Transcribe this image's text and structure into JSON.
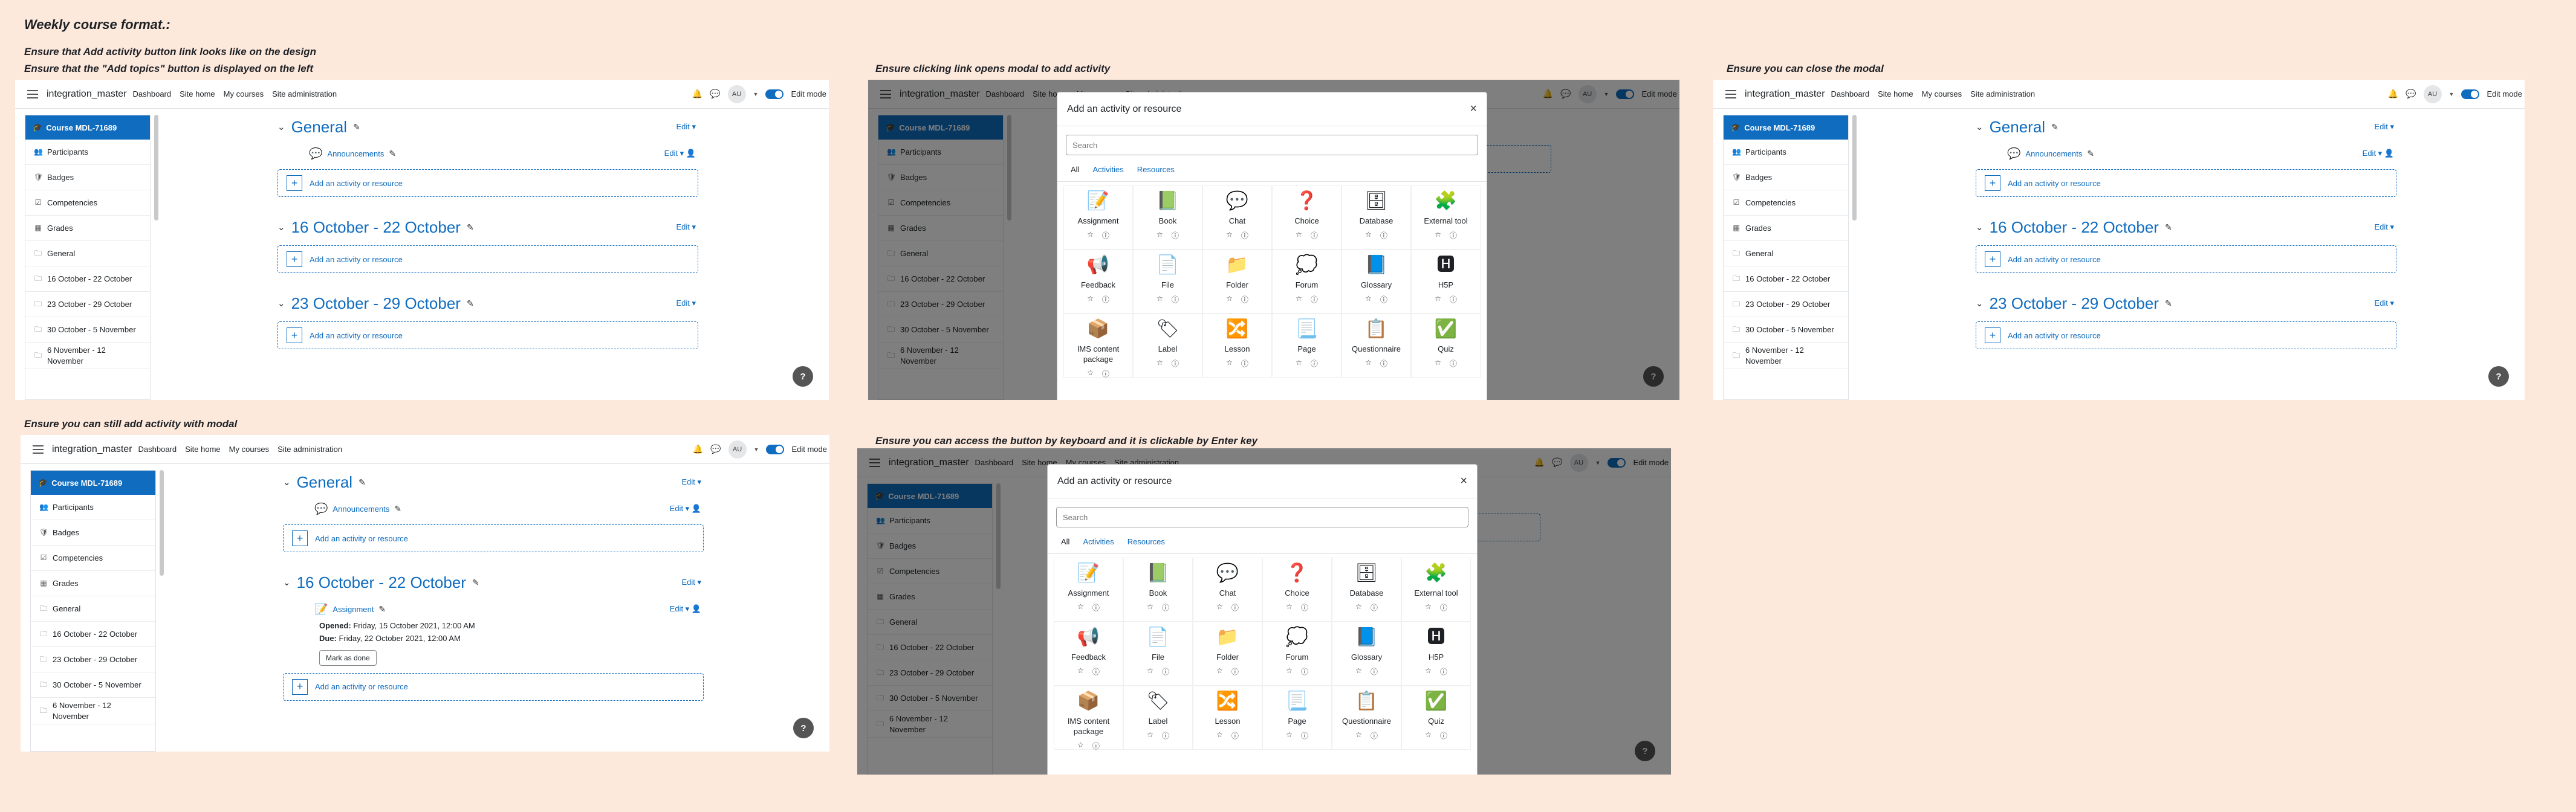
{
  "page_title": "Weekly course format.:",
  "captions": {
    "c1a": "Ensure that Add activity button link looks like on the design",
    "c1b": "Ensure that the \"Add topics\" button is displayed on the left",
    "c2": "Ensure clicking link opens modal to add activity",
    "c3": "Ensure you can close the modal",
    "c4": "Ensure you can still add activity with modal",
    "c5": "Ensure you can access the button by keyboard and it is clickable by Enter key"
  },
  "nav": {
    "site_name": "integration_master",
    "links": [
      "Dashboard",
      "Site home",
      "My courses",
      "Site administration"
    ],
    "avatar": "AU",
    "edit_mode": "Edit mode"
  },
  "drawer": {
    "course": "Course MDL-71689",
    "items": [
      {
        "label": "Participants",
        "icon": "users-icon"
      },
      {
        "label": "Badges",
        "icon": "badge-icon"
      },
      {
        "label": "Competencies",
        "icon": "competencies-icon"
      },
      {
        "label": "Grades",
        "icon": "grades-icon"
      },
      {
        "label": "General",
        "icon": "folder-icon"
      },
      {
        "label": "16 October - 22 October",
        "icon": "folder-icon"
      },
      {
        "label": "23 October - 29 October",
        "icon": "folder-icon"
      },
      {
        "label": "30 October - 5 November",
        "icon": "folder-icon"
      },
      {
        "label": "6 November - 12 November",
        "icon": "folder-icon"
      }
    ]
  },
  "course": {
    "sections": [
      "General",
      "16 October - 22 October",
      "23 October - 29 October"
    ],
    "edit": "Edit",
    "announcements": "Announcements",
    "add_activity": "Add an activity or resource",
    "help": "?"
  },
  "assignment": {
    "name": "Assignment",
    "opened_label": "Opened:",
    "opened_value": "Friday, 15 October 2021, 12:00 AM",
    "due_label": "Due:",
    "due_value": "Friday, 22 October 2021, 12:00 AM",
    "mark_done": "Mark as done"
  },
  "modal": {
    "title": "Add an activity or resource",
    "search_placeholder": "Search",
    "tabs": [
      "All",
      "Activities",
      "Resources"
    ],
    "items": [
      {
        "name": "Assignment",
        "icon": "assignment-icon"
      },
      {
        "name": "Book",
        "icon": "book-icon"
      },
      {
        "name": "Chat",
        "icon": "chat-icon"
      },
      {
        "name": "Choice",
        "icon": "choice-icon"
      },
      {
        "name": "Database",
        "icon": "database-icon"
      },
      {
        "name": "External tool",
        "icon": "external-tool-icon"
      },
      {
        "name": "Feedback",
        "icon": "feedback-icon"
      },
      {
        "name": "File",
        "icon": "file-icon"
      },
      {
        "name": "Folder",
        "icon": "folder-icon"
      },
      {
        "name": "Forum",
        "icon": "forum-icon"
      },
      {
        "name": "Glossary",
        "icon": "glossary-icon"
      },
      {
        "name": "H5P",
        "icon": "h5p-icon"
      },
      {
        "name": "IMS content package",
        "icon": "ims-package-icon"
      },
      {
        "name": "Label",
        "icon": "label-icon"
      },
      {
        "name": "Lesson",
        "icon": "lesson-icon"
      },
      {
        "name": "Page",
        "icon": "page-icon"
      },
      {
        "name": "Questionnaire",
        "icon": "questionnaire-icon"
      },
      {
        "name": "Quiz",
        "icon": "quiz-icon"
      }
    ]
  }
}
